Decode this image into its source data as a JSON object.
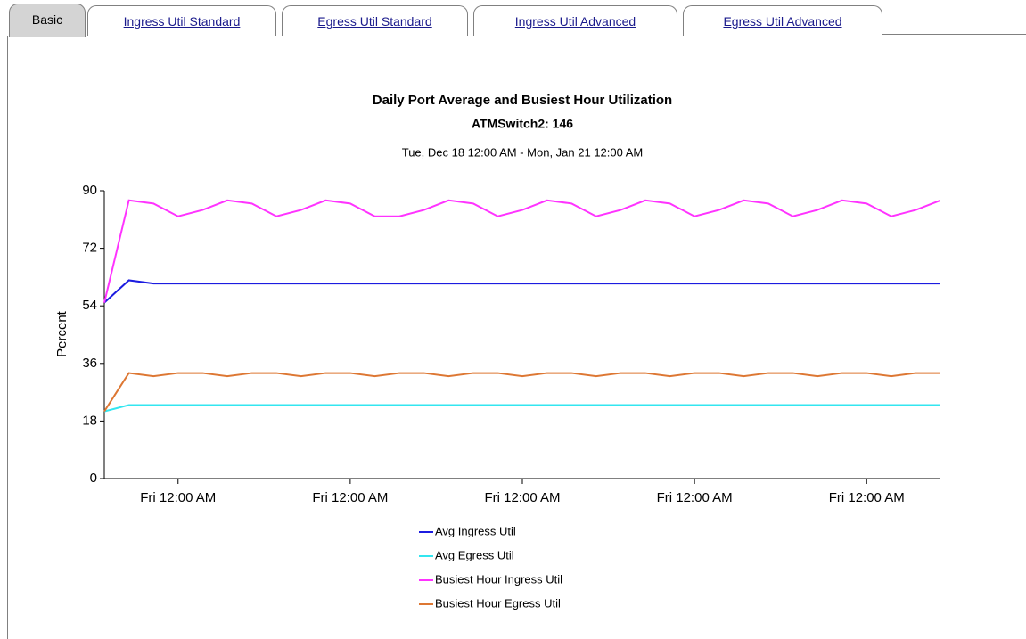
{
  "tabs": [
    "Basic",
    "Ingress Util Standard",
    "Egress Util Standard",
    "Ingress Util Advanced",
    "Egress Util Advanced"
  ],
  "chart_data": {
    "type": "line",
    "title": "Daily Port Average and Busiest Hour Utilization",
    "subtitle": "ATMSwitch2: 146",
    "date_range": "Tue, Dec 18 12:00 AM - Mon, Jan 21 12:00 AM",
    "y_label": "Percent",
    "categories": [
      null,
      null,
      null,
      "Fri 12:00 AM",
      null,
      null,
      null,
      null,
      null,
      null,
      "Fri 12:00 AM",
      null,
      null,
      null,
      null,
      null,
      null,
      "Fri 12:00 AM",
      null,
      null,
      null,
      null,
      null,
      null,
      "Fri 12:00 AM",
      null,
      null,
      null,
      null,
      null,
      null,
      "Fri 12:00 AM",
      null,
      null,
      null
    ],
    "ylim": [
      0,
      90
    ],
    "yticks": [
      0,
      18,
      36,
      54,
      72,
      90
    ],
    "series": [
      {
        "name": "Avg Ingress Util",
        "color": "#1c1ce0",
        "values": [
          55,
          62,
          61,
          61,
          61,
          61,
          61,
          61,
          61,
          61,
          61,
          61,
          61,
          61,
          61,
          61,
          61,
          61,
          61,
          61,
          61,
          61,
          61,
          61,
          61,
          61,
          61,
          61,
          61,
          61,
          61,
          61,
          61,
          61,
          61
        ]
      },
      {
        "name": "Avg Egress Util",
        "color": "#33e6f0",
        "values": [
          21,
          23,
          23,
          23,
          23,
          23,
          23,
          23,
          23,
          23,
          23,
          23,
          23,
          23,
          23,
          23,
          23,
          23,
          23,
          23,
          23,
          23,
          23,
          23,
          23,
          23,
          23,
          23,
          23,
          23,
          23,
          23,
          23,
          23,
          23
        ]
      },
      {
        "name": "Busiest Hour Ingress Util",
        "color": "#ff33ff",
        "values": [
          55,
          87,
          86,
          82,
          84,
          87,
          86,
          82,
          84,
          87,
          86,
          82,
          82,
          84,
          87,
          86,
          82,
          84,
          87,
          86,
          82,
          84,
          87,
          86,
          82,
          84,
          87,
          86,
          82,
          84,
          87,
          86,
          82,
          84,
          87
        ]
      },
      {
        "name": "Busiest Hour Egress Util",
        "color": "#dd7733",
        "values": [
          21,
          33,
          32,
          33,
          33,
          32,
          33,
          33,
          32,
          33,
          33,
          32,
          33,
          33,
          32,
          33,
          33,
          32,
          33,
          33,
          32,
          33,
          33,
          32,
          33,
          33,
          32,
          33,
          33,
          32,
          33,
          33,
          32,
          33,
          33
        ]
      }
    ]
  }
}
